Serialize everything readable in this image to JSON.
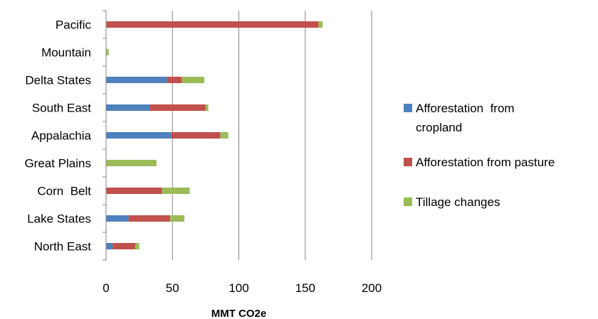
{
  "chart_data": {
    "type": "bar",
    "orientation": "horizontal",
    "stacked": true,
    "categories": [
      "North East",
      "Lake States",
      "Corn  Belt",
      "Great Plains",
      "Appalachia",
      "South East",
      "Delta States",
      "Mountain",
      "Pacific"
    ],
    "series": [
      {
        "name": "Afforestation  from cropland",
        "legend_lines": [
          "Afforestation  from",
          "cropland"
        ],
        "color": "#4f81bd",
        "values": [
          5,
          17,
          0,
          0,
          49,
          33,
          46,
          0,
          0
        ]
      },
      {
        "name": "Afforestation from pasture",
        "legend_lines": [
          "Afforestation from pasture"
        ],
        "color": "#c0504d",
        "values": [
          17,
          31,
          42,
          0,
          37,
          42,
          11,
          0,
          160
        ]
      },
      {
        "name": "Tillage changes",
        "legend_lines": [
          "Tillage changes"
        ],
        "color": "#9bbb59",
        "values": [
          3,
          11,
          21,
          38,
          6,
          2,
          17,
          2,
          3
        ]
      }
    ],
    "xlabel": "MMT CO2e",
    "xlim": [
      0,
      200
    ],
    "xticks": [
      0,
      50,
      100,
      150,
      200
    ],
    "xtick_labels": [
      "0",
      "50",
      "100",
      "150",
      "200"
    ],
    "grid": "vertical",
    "legend": "right"
  }
}
